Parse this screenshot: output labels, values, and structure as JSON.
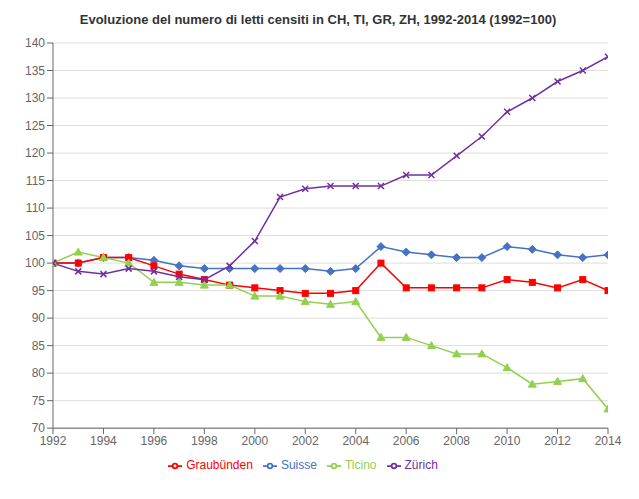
{
  "chart_data": {
    "type": "line",
    "title": "Evoluzione del numero di letti censiti in CH, TI, GR, ZH, 1992-2014 (1992=100)",
    "x": [
      1992,
      1993,
      1994,
      1995,
      1996,
      1997,
      1998,
      1999,
      2000,
      2001,
      2002,
      2003,
      2004,
      2005,
      2006,
      2007,
      2008,
      2009,
      2010,
      2011,
      2012,
      2013,
      2014
    ],
    "series": [
      {
        "name": "Suisse",
        "color": "#4472C4",
        "marker": "diamond",
        "values": [
          100,
          100,
          101,
          101,
          100.5,
          99.5,
          99,
          99,
          99,
          99,
          99,
          98.5,
          99,
          103,
          102,
          101.5,
          101,
          101,
          103,
          102.5,
          101.5,
          101,
          101.5
        ]
      },
      {
        "name": "Graubünden",
        "color": "#FF0000",
        "marker": "square",
        "values": [
          100,
          100,
          101,
          101,
          99.5,
          98,
          97,
          96,
          95.5,
          95,
          94.5,
          94.5,
          95,
          100,
          95.5,
          95.5,
          95.5,
          95.5,
          97,
          96.5,
          95.5,
          97,
          95
        ]
      },
      {
        "name": "Ticino",
        "color": "#92D050",
        "marker": "triangle",
        "values": [
          100,
          102,
          101,
          100,
          96.5,
          96.5,
          96,
          96,
          94,
          94,
          93,
          92.5,
          93,
          86.5,
          86.5,
          85,
          83.5,
          83.5,
          81,
          78,
          78.5,
          79,
          73.5
        ]
      },
      {
        "name": "Zürich",
        "color": "#7030A0",
        "marker": "cross",
        "values": [
          100,
          98.5,
          98,
          99,
          98.5,
          97.5,
          97,
          99.5,
          104,
          112,
          113.5,
          114,
          114,
          114,
          116,
          116,
          119.5,
          123,
          127.5,
          130,
          133,
          135,
          137.5
        ]
      }
    ],
    "xlim": [
      1992,
      2014
    ],
    "xticks": [
      1992,
      1994,
      1996,
      1998,
      2000,
      2002,
      2004,
      2006,
      2008,
      2010,
      2012,
      2014
    ],
    "ylim": [
      70,
      140
    ],
    "yticks": [
      70,
      75,
      80,
      85,
      90,
      95,
      100,
      105,
      110,
      115,
      120,
      125,
      130,
      135,
      140
    ],
    "grid": "y",
    "legend": "bottom"
  }
}
